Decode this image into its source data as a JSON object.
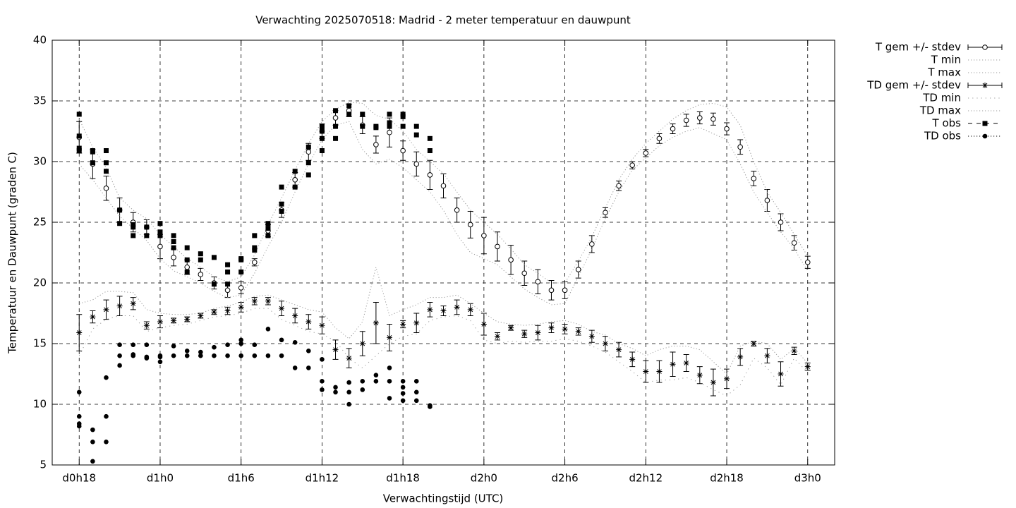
{
  "chart_data": {
    "type": "errorbar",
    "title": "Verwachting 2025070518: Madrid - 2 meter temperatuur en dauwpunt",
    "xlabel": "Verwachtingstijd (UTC)",
    "ylabel": "Temperatuur en Dauwpunt (graden C)",
    "xlim": [
      16,
      74
    ],
    "ylim": [
      5,
      40
    ],
    "xticks": [
      {
        "value": 18,
        "label": "d0h18"
      },
      {
        "value": 24,
        "label": "d1h0"
      },
      {
        "value": 30,
        "label": "d1h6"
      },
      {
        "value": 36,
        "label": "d1h12"
      },
      {
        "value": 42,
        "label": "d1h18"
      },
      {
        "value": 48,
        "label": "d2h0"
      },
      {
        "value": 54,
        "label": "d2h6"
      },
      {
        "value": 60,
        "label": "d2h12"
      },
      {
        "value": 66,
        "label": "d2h18"
      },
      {
        "value": 72,
        "label": "d3h0"
      }
    ],
    "yticks": [
      5,
      10,
      15,
      20,
      25,
      30,
      35,
      40
    ],
    "grid": true,
    "legend": "outside-right-top",
    "x": [
      18,
      19,
      20,
      21,
      22,
      23,
      24,
      25,
      26,
      27,
      28,
      29,
      30,
      31,
      32,
      33,
      34,
      35,
      36,
      37,
      38,
      39,
      40,
      41,
      42,
      43,
      44,
      45,
      46,
      47,
      48,
      49,
      50,
      51,
      52,
      53,
      54,
      55,
      56,
      57,
      58,
      59,
      60,
      61,
      62,
      63,
      64,
      65,
      66,
      67,
      68,
      69,
      70,
      71,
      72
    ],
    "series": [
      {
        "name": "T gem +/- stdev",
        "color": "#000000",
        "line": "none",
        "marker": "circle",
        "values": [
          32.0,
          29.8,
          27.8,
          26.0,
          25.0,
          24.6,
          23.0,
          22.1,
          21.3,
          20.7,
          20.0,
          19.4,
          19.6,
          21.7,
          24.3,
          26.0,
          28.5,
          30.8,
          32.5,
          33.6,
          34.2,
          33.0,
          31.4,
          32.4,
          30.9,
          29.8,
          28.9,
          28.0,
          26.0,
          24.8,
          23.9,
          23.0,
          21.9,
          20.8,
          20.1,
          19.4,
          19.4,
          21.1,
          23.2,
          25.8,
          28.0,
          29.7,
          30.7,
          31.9,
          32.7,
          33.4,
          33.6,
          33.5,
          32.7,
          31.2,
          28.6,
          26.8,
          25.0,
          23.3,
          21.7
        ],
        "errors": [
          1.3,
          1.2,
          1.0,
          1.0,
          0.8,
          0.6,
          1.0,
          0.7,
          0.6,
          0.5,
          0.5,
          0.6,
          0.5,
          0.3,
          0.5,
          0.6,
          0.6,
          0.7,
          0.6,
          0.6,
          0.5,
          0.7,
          0.7,
          1.2,
          0.8,
          1.0,
          1.2,
          1.0,
          1.0,
          1.1,
          1.5,
          1.2,
          1.2,
          1.0,
          1.0,
          0.8,
          0.7,
          0.7,
          0.7,
          0.4,
          0.4,
          0.3,
          0.3,
          0.4,
          0.4,
          0.5,
          0.5,
          0.5,
          0.5,
          0.6,
          0.6,
          0.9,
          0.7,
          0.6,
          0.5
        ]
      },
      {
        "name": "T min",
        "color": "#999999",
        "line": "dotted",
        "marker": "none",
        "values": [
          29.8,
          28.5,
          27.0,
          25.5,
          24.5,
          23.5,
          22.0,
          21.0,
          20.5,
          20.0,
          19.3,
          18.8,
          19.0,
          20.8,
          23.0,
          25.0,
          27.5,
          29.8,
          31.8,
          33.0,
          33.3,
          31.0,
          29.8,
          30.2,
          29.5,
          28.5,
          27.5,
          26.0,
          24.0,
          22.5,
          22.0,
          21.5,
          20.5,
          19.5,
          18.8,
          18.2,
          18.3,
          20.5,
          22.8,
          25.3,
          27.5,
          29.3,
          30.3,
          31.3,
          32.0,
          32.5,
          32.8,
          32.3,
          31.8,
          29.8,
          27.5,
          25.8,
          24.2,
          22.8,
          21.0
        ]
      },
      {
        "name": "T max",
        "color": "#999999",
        "line": "dotted",
        "marker": "none",
        "values": [
          33.5,
          31.2,
          29.5,
          27.0,
          26.0,
          25.3,
          24.0,
          23.0,
          22.0,
          21.3,
          20.5,
          20.1,
          20.5,
          22.3,
          24.8,
          27.0,
          29.3,
          31.5,
          33.3,
          34.3,
          34.9,
          34.8,
          33.8,
          33.5,
          32.5,
          31.0,
          30.0,
          29.0,
          27.5,
          26.0,
          25.0,
          24.0,
          22.8,
          21.5,
          20.8,
          20.0,
          20.0,
          21.8,
          23.8,
          26.2,
          28.5,
          30.2,
          31.5,
          32.5,
          33.5,
          34.2,
          34.7,
          34.8,
          34.5,
          33.0,
          30.0,
          27.5,
          25.8,
          24.0,
          22.2
        ]
      },
      {
        "name": "TD gem +/- stdev",
        "color": "#000000",
        "line": "none",
        "marker": "star",
        "values": [
          15.9,
          17.2,
          17.8,
          18.1,
          18.3,
          16.5,
          16.8,
          16.9,
          17.0,
          17.3,
          17.6,
          17.7,
          18.0,
          18.5,
          18.5,
          17.9,
          17.3,
          16.8,
          16.5,
          14.5,
          13.8,
          15.0,
          16.7,
          15.5,
          16.6,
          16.7,
          17.8,
          17.7,
          18.0,
          17.8,
          16.6,
          15.6,
          16.3,
          15.8,
          15.9,
          16.3,
          16.2,
          16.0,
          15.6,
          15.0,
          14.5,
          13.7,
          12.7,
          12.7,
          13.3,
          13.4,
          12.4,
          11.8,
          12.1,
          13.9,
          15.0,
          14.0,
          12.5,
          14.4,
          13.1
        ],
        "errors": [
          1.5,
          0.5,
          0.8,
          0.8,
          0.5,
          0.3,
          0.5,
          0.2,
          0.2,
          0.2,
          0.2,
          0.3,
          0.4,
          0.3,
          0.3,
          0.6,
          0.6,
          0.6,
          0.7,
          0.8,
          0.8,
          1.0,
          1.7,
          1.1,
          0.3,
          0.8,
          0.6,
          0.4,
          0.6,
          0.5,
          0.9,
          0.3,
          0.2,
          0.3,
          0.6,
          0.4,
          0.4,
          0.3,
          0.5,
          0.6,
          0.6,
          0.6,
          0.9,
          0.9,
          1.0,
          0.7,
          0.7,
          1.1,
          0.8,
          0.7,
          0.2,
          0.6,
          1.0,
          0.3,
          0.3
        ]
      },
      {
        "name": "TD min",
        "color": "#999999",
        "line": "sparse",
        "marker": "none",
        "values": [
          14.0,
          16.2,
          17.0,
          17.3,
          17.3,
          16.0,
          16.3,
          16.5,
          16.6,
          16.9,
          17.2,
          17.3,
          17.5,
          17.9,
          17.9,
          17.0,
          16.5,
          16.0,
          15.8,
          15.2,
          13.8,
          13.0,
          14.0,
          15.0,
          15.6,
          15.8,
          16.9,
          17.2,
          17.3,
          16.9,
          15.3,
          15.0,
          15.2,
          15.1,
          15.2,
          15.2,
          15.4,
          15.2,
          14.8,
          14.3,
          13.5,
          12.7,
          11.8,
          12.0,
          12.0,
          12.2,
          11.8,
          11.2,
          10.7,
          11.6,
          13.8,
          13.0,
          11.6,
          13.8,
          12.6
        ]
      },
      {
        "name": "TD max",
        "color": "#999999",
        "line": "dotted",
        "marker": "none",
        "values": [
          18.3,
          18.6,
          19.3,
          19.3,
          19.2,
          17.8,
          17.5,
          17.4,
          17.4,
          17.5,
          17.9,
          18.1,
          18.4,
          18.9,
          19.0,
          18.6,
          18.2,
          17.8,
          17.6,
          16.3,
          15.4,
          16.8,
          21.3,
          17.3,
          17.8,
          18.2,
          18.8,
          18.8,
          19.0,
          18.3,
          17.5,
          16.8,
          16.6,
          16.5,
          16.6,
          16.8,
          16.9,
          16.6,
          16.0,
          15.7,
          15.0,
          14.6,
          14.0,
          14.5,
          14.8,
          14.8,
          14.5,
          13.5,
          12.5,
          14.8,
          15.2,
          15.0,
          13.7,
          14.6,
          13.4
        ]
      },
      {
        "name": "T obs",
        "color": "#000000",
        "line": "dashed",
        "marker": "square",
        "x": [
          18,
          18,
          18,
          18,
          19,
          19,
          19,
          20,
          20,
          20,
          21,
          21,
          22,
          22,
          22,
          23,
          23,
          24,
          24,
          24,
          25,
          25,
          25,
          26,
          26,
          26,
          27,
          27,
          28,
          28,
          29,
          29,
          29,
          30,
          30,
          30,
          31,
          31,
          31,
          32,
          32,
          32,
          33,
          33,
          33,
          34,
          34,
          35,
          35,
          35,
          36,
          36,
          36,
          36,
          37,
          37,
          37,
          38,
          38,
          39,
          39,
          40,
          40,
          41,
          41,
          41,
          42,
          42,
          42,
          43,
          43,
          44,
          44
        ],
        "values": [
          33.9,
          32.1,
          31.1,
          30.9,
          30.9,
          30.8,
          29.9,
          30.9,
          29.9,
          29.2,
          26.0,
          24.9,
          24.8,
          24.6,
          23.9,
          24.6,
          23.9,
          24.9,
          24.2,
          23.9,
          23.9,
          23.4,
          22.9,
          22.9,
          21.9,
          20.9,
          22.4,
          21.9,
          22.1,
          19.9,
          21.5,
          20.9,
          19.9,
          22.0,
          21.9,
          20.9,
          23.9,
          22.9,
          22.7,
          24.9,
          24.5,
          23.9,
          27.9,
          26.5,
          25.9,
          29.2,
          27.9,
          31.2,
          29.9,
          28.9,
          32.9,
          32.5,
          31.9,
          30.9,
          34.2,
          32.9,
          31.9,
          34.6,
          33.9,
          33.9,
          32.9,
          32.9,
          32.8,
          33.9,
          33.2,
          32.9,
          33.9,
          33.7,
          32.9,
          32.9,
          32.2,
          31.9,
          30.9
        ]
      },
      {
        "name": "TD obs",
        "color": "#000000",
        "line": "dotted",
        "marker": "dot",
        "x": [
          18,
          18,
          18,
          18,
          19,
          19,
          19,
          20,
          20,
          20,
          21,
          21,
          21,
          22,
          22,
          22,
          23,
          23,
          23,
          24,
          24,
          24,
          25,
          25,
          26,
          26,
          27,
          27,
          28,
          28,
          29,
          29,
          30,
          30,
          30,
          31,
          31,
          32,
          32,
          33,
          33,
          34,
          34,
          35,
          35,
          36,
          36,
          36,
          37,
          37,
          38,
          38,
          38,
          39,
          39,
          40,
          40,
          41,
          41,
          41,
          42,
          42,
          42,
          42,
          43,
          43,
          43,
          44,
          44
        ],
        "values": [
          11.0,
          9.0,
          8.4,
          8.2,
          7.9,
          6.9,
          5.3,
          12.2,
          9.0,
          6.9,
          14.9,
          14.0,
          13.2,
          14.9,
          14.1,
          14.0,
          14.9,
          13.9,
          13.8,
          14.0,
          13.9,
          13.5,
          14.8,
          14.0,
          14.4,
          14.0,
          14.3,
          14.0,
          14.7,
          14.0,
          14.9,
          14.0,
          15.3,
          15.0,
          14.0,
          14.9,
          14.0,
          16.2,
          14.0,
          15.3,
          14.0,
          15.1,
          13.0,
          14.4,
          13.0,
          13.7,
          11.9,
          11.2,
          11.4,
          11.0,
          11.8,
          11.0,
          10.0,
          11.9,
          11.2,
          12.4,
          11.9,
          13.0,
          11.9,
          10.5,
          11.9,
          11.4,
          10.9,
          10.3,
          11.9,
          11.0,
          10.3,
          9.9,
          9.8
        ]
      }
    ]
  }
}
